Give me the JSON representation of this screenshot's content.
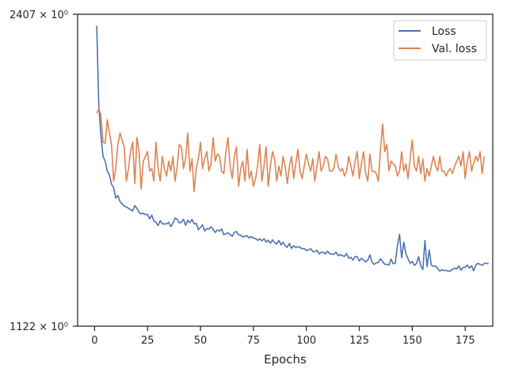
{
  "chart_data": {
    "type": "line",
    "xlabel": "Epochs",
    "ylabel": "",
    "xlim": [
      -8,
      188
    ],
    "ylim": [
      1122,
      2407
    ],
    "yscale": "log",
    "y_tick_labels": [
      "2407 × 10⁰",
      "1122 × 10⁰"
    ],
    "x_ticks": [
      0,
      25,
      50,
      75,
      100,
      125,
      150,
      175
    ],
    "grid": false,
    "legend_position": "top-right",
    "colors": {
      "loss": "#4c72b0",
      "val_loss": "#dd8452",
      "axis": "#262626"
    },
    "series": [
      {
        "name": "Loss",
        "x_start": 1,
        "values": [
          2340,
          1925,
          1790,
          1700,
          1680,
          1640,
          1625,
          1588,
          1575,
          1535,
          1545,
          1522,
          1514,
          1505,
          1502,
          1497,
          1492,
          1487,
          1507,
          1497,
          1483,
          1477,
          1479,
          1474,
          1475,
          1459,
          1472,
          1451,
          1447,
          1435,
          1453,
          1441,
          1441,
          1441,
          1447,
          1431,
          1444,
          1462,
          1457,
          1444,
          1447,
          1457,
          1436,
          1454,
          1445,
          1457,
          1441,
          1443,
          1421,
          1429,
          1438,
          1416,
          1425,
          1423,
          1431,
          1422,
          1411,
          1420,
          1416,
          1423,
          1404,
          1407,
          1410,
          1404,
          1398,
          1412,
          1414,
          1403,
          1402,
          1395,
          1398,
          1400,
          1392,
          1397,
          1392,
          1390,
          1384,
          1390,
          1382,
          1390,
          1378,
          1385,
          1374,
          1386,
          1377,
          1372,
          1384,
          1369,
          1378,
          1366,
          1361,
          1374,
          1357,
          1366,
          1360,
          1363,
          1361,
          1356,
          1357,
          1350,
          1352,
          1356,
          1347,
          1346,
          1351,
          1339,
          1344,
          1345,
          1339,
          1348,
          1340,
          1338,
          1338,
          1345,
          1333,
          1337,
          1333,
          1331,
          1340,
          1325,
          1328,
          1319,
          1330,
          1330,
          1316,
          1325,
          1319,
          1313,
          1319,
          1336,
          1312,
          1305,
          1310,
          1311,
          1323,
          1314,
          1305,
          1305,
          1303,
          1322,
          1307,
          1309,
          1366,
          1405,
          1326,
          1378,
          1339,
          1323,
          1308,
          1315,
          1302,
          1308,
          1330,
          1301,
          1289,
          1384,
          1298,
          1352,
          1303,
          1299,
          1300,
          1292,
          1284,
          1288,
          1286,
          1286,
          1284,
          1284,
          1290,
          1293,
          1291,
          1300,
          1287,
          1295,
          1296,
          1303,
          1293,
          1301,
          1285,
          1302,
          1309,
          1305,
          1302,
          1308,
          1309,
          1307
        ]
      },
      {
        "name": "Val. loss",
        "x_start": 1,
        "values": [
          1890,
          1910,
          1880,
          1760,
          1755,
          1860,
          1800,
          1750,
          1600,
          1650,
          1750,
          1800,
          1770,
          1740,
          1600,
          1650,
          1720,
          1760,
          1590,
          1780,
          1720,
          1570,
          1680,
          1700,
          1720,
          1640,
          1650,
          1600,
          1760,
          1650,
          1600,
          1700,
          1650,
          1620,
          1680,
          1640,
          1700,
          1600,
          1660,
          1750,
          1740,
          1650,
          1690,
          1800,
          1640,
          1690,
          1560,
          1650,
          1690,
          1760,
          1650,
          1690,
          1720,
          1640,
          1670,
          1780,
          1680,
          1710,
          1700,
          1640,
          1630,
          1720,
          1780,
          1660,
          1610,
          1700,
          1740,
          1580,
          1650,
          1680,
          1600,
          1730,
          1610,
          1640,
          1580,
          1610,
          1660,
          1750,
          1600,
          1660,
          1740,
          1580,
          1660,
          1720,
          1690,
          1600,
          1660,
          1620,
          1700,
          1660,
          1590,
          1660,
          1700,
          1610,
          1670,
          1730,
          1640,
          1610,
          1660,
          1710,
          1670,
          1640,
          1690,
          1600,
          1660,
          1720,
          1640,
          1660,
          1700,
          1690,
          1640,
          1640,
          1650,
          1710,
          1660,
          1640,
          1650,
          1620,
          1640,
          1700,
          1660,
          1620,
          1680,
          1720,
          1610,
          1670,
          1720,
          1630,
          1600,
          1710,
          1640,
          1640,
          1630,
          1600,
          1730,
          1840,
          1720,
          1750,
          1640,
          1680,
          1670,
          1660,
          1620,
          1640,
          1720,
          1640,
          1670,
          1610,
          1690,
          1770,
          1660,
          1640,
          1700,
          1630,
          1690,
          1600,
          1650,
          1620,
          1660,
          1700,
          1660,
          1640,
          1700,
          1640,
          1640,
          1620,
          1640,
          1650,
          1630,
          1660,
          1680,
          1700,
          1660,
          1720,
          1610,
          1680,
          1720,
          1640,
          1670,
          1700,
          1680,
          1720,
          1630,
          1700
        ]
      }
    ]
  }
}
